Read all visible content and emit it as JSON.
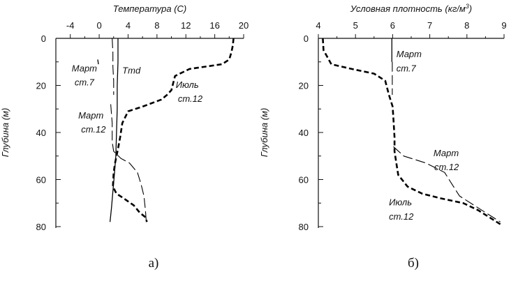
{
  "chart_data": [
    {
      "type": "line",
      "panel_label": "а)",
      "xlabel": "Температура (С)",
      "ylabel": "Глубина (м)",
      "xlim": [
        -6,
        20
      ],
      "ylim": [
        0,
        80
      ],
      "y_inverted": true,
      "x_axis_position": "top",
      "x_ticks": [
        -4,
        0,
        4,
        8,
        12,
        16,
        20
      ],
      "x_tick_labels": [
        "-4",
        "0",
        "4",
        "8",
        "12",
        "16",
        "20"
      ],
      "y_ticks": [
        0,
        20,
        40,
        60,
        80
      ],
      "y_tick_labels": [
        "0",
        "20",
        "40",
        "60",
        "80"
      ],
      "series": [
        {
          "style": "solid",
          "color": "#000000",
          "points": [
            [
              -0.2,
              9
            ],
            [
              -0.1,
              11
            ]
          ]
        },
        {
          "style": "long-dash",
          "color": "#000000",
          "points": [
            [
              1.8,
              0
            ],
            [
              1.9,
              6
            ],
            [
              1.9,
              12
            ],
            [
              2.0,
              18
            ],
            [
              2.0,
              24
            ]
          ]
        },
        {
          "style": "long-dash",
          "color": "#000000",
          "points": [
            [
              1.6,
              28
            ],
            [
              1.8,
              36
            ],
            [
              1.8,
              44
            ],
            [
              2.0,
              48
            ],
            [
              3.0,
              51
            ],
            [
              4.2,
              53
            ],
            [
              5.3,
              57
            ],
            [
              5.8,
              62
            ],
            [
              6.2,
              67
            ],
            [
              6.4,
              73
            ],
            [
              6.5,
              77
            ]
          ]
        },
        {
          "style": "solid",
          "color": "#000000",
          "points": [
            [
              2.6,
              0
            ],
            [
              2.6,
              10
            ],
            [
              2.5,
              20
            ],
            [
              2.5,
              30
            ],
            [
              2.4,
              40
            ],
            [
              2.3,
              50
            ],
            [
              2.1,
              58
            ],
            [
              1.9,
              65
            ],
            [
              1.7,
              72
            ],
            [
              1.5,
              78
            ]
          ]
        },
        {
          "style": "dashed-thick",
          "color": "#000000",
          "points": [
            [
              18.6,
              0
            ],
            [
              18.5,
              3
            ],
            [
              18.3,
              6
            ],
            [
              18.0,
              9
            ],
            [
              17.0,
              11
            ],
            [
              12.5,
              13
            ],
            [
              10.5,
              16
            ],
            [
              10.0,
              22
            ],
            [
              9.4,
              24
            ],
            [
              8.6,
              26
            ],
            [
              6.0,
              29
            ],
            [
              4.0,
              31
            ],
            [
              3.2,
              36
            ],
            [
              2.9,
              42
            ],
            [
              2.6,
              47
            ],
            [
              2.2,
              53
            ],
            [
              2.0,
              57
            ],
            [
              1.9,
              63
            ],
            [
              2.4,
              66
            ],
            [
              3.4,
              68
            ],
            [
              4.8,
              71
            ],
            [
              5.6,
              74
            ],
            [
              6.4,
              76
            ],
            [
              6.6,
              78
            ]
          ]
        }
      ],
      "annotations": [
        {
          "text": "Март",
          "x": -3.8,
          "y": 14
        },
        {
          "text": "ст.7",
          "x": -3.4,
          "y": 20
        },
        {
          "text": "Tmd",
          "x": 3.2,
          "y": 15
        },
        {
          "text": "Март",
          "x": -2.9,
          "y": 34
        },
        {
          "text": "ст.12",
          "x": -2.5,
          "y": 40
        },
        {
          "text": "Июль",
          "x": 10.6,
          "y": 21
        },
        {
          "text": "ст.12",
          "x": 10.9,
          "y": 27
        }
      ]
    },
    {
      "type": "line",
      "panel_label": "б)",
      "xlabel": "Условная плотность (кг/м",
      "xlabel_sup": "3",
      "xlabel_end": ")",
      "ylabel": "Глубина (м)",
      "xlim": [
        4,
        9
      ],
      "ylim": [
        0,
        80
      ],
      "y_inverted": true,
      "x_axis_position": "top",
      "x_ticks": [
        4,
        5,
        6,
        7,
        8,
        9
      ],
      "x_tick_labels": [
        "4",
        "5",
        "6",
        "7",
        "8",
        "9"
      ],
      "y_ticks": [
        0,
        20,
        40,
        60,
        80
      ],
      "y_tick_labels": [
        "0",
        "20",
        "40",
        "60",
        "80"
      ],
      "series": [
        {
          "style": "solid",
          "color": "#000000",
          "points": [
            [
              5.98,
              0
            ],
            [
              5.98,
              10
            ]
          ]
        },
        {
          "style": "long-dash",
          "color": "#000000",
          "points": [
            [
              5.99,
              10
            ],
            [
              5.99,
              16
            ],
            [
              5.99,
              24
            ]
          ]
        },
        {
          "style": "long-dash",
          "color": "#000000",
          "points": [
            [
              6.02,
              46
            ],
            [
              6.3,
              50
            ],
            [
              6.9,
              53
            ],
            [
              7.4,
              57
            ],
            [
              7.6,
              62
            ],
            [
              7.8,
              67
            ],
            [
              8.2,
              71
            ],
            [
              8.5,
              74
            ],
            [
              8.9,
              78
            ]
          ]
        },
        {
          "style": "dashed-thick",
          "color": "#000000",
          "points": [
            [
              4.12,
              0
            ],
            [
              4.14,
              5
            ],
            [
              4.28,
              9
            ],
            [
              4.35,
              11
            ],
            [
              4.9,
              13
            ],
            [
              5.5,
              15
            ],
            [
              5.8,
              18
            ],
            [
              5.9,
              24
            ],
            [
              6.0,
              29
            ],
            [
              6.02,
              34
            ],
            [
              6.05,
              42
            ],
            [
              6.05,
              48
            ],
            [
              6.1,
              53
            ],
            [
              6.15,
              58
            ],
            [
              6.4,
              63
            ],
            [
              6.8,
              66
            ],
            [
              7.3,
              68
            ],
            [
              7.9,
              70
            ],
            [
              8.3,
              73
            ],
            [
              8.6,
              76
            ],
            [
              8.9,
              79
            ]
          ]
        }
      ],
      "annotations": [
        {
          "text": "Март",
          "x": 6.1,
          "y": 8
        },
        {
          "text": "ст.7",
          "x": 6.1,
          "y": 14
        },
        {
          "text": "Март",
          "x": 7.1,
          "y": 50
        },
        {
          "text": "ст.12",
          "x": 7.12,
          "y": 56
        },
        {
          "text": "Июль",
          "x": 5.9,
          "y": 71
        },
        {
          "text": "ст.12",
          "x": 5.9,
          "y": 77
        }
      ]
    }
  ]
}
